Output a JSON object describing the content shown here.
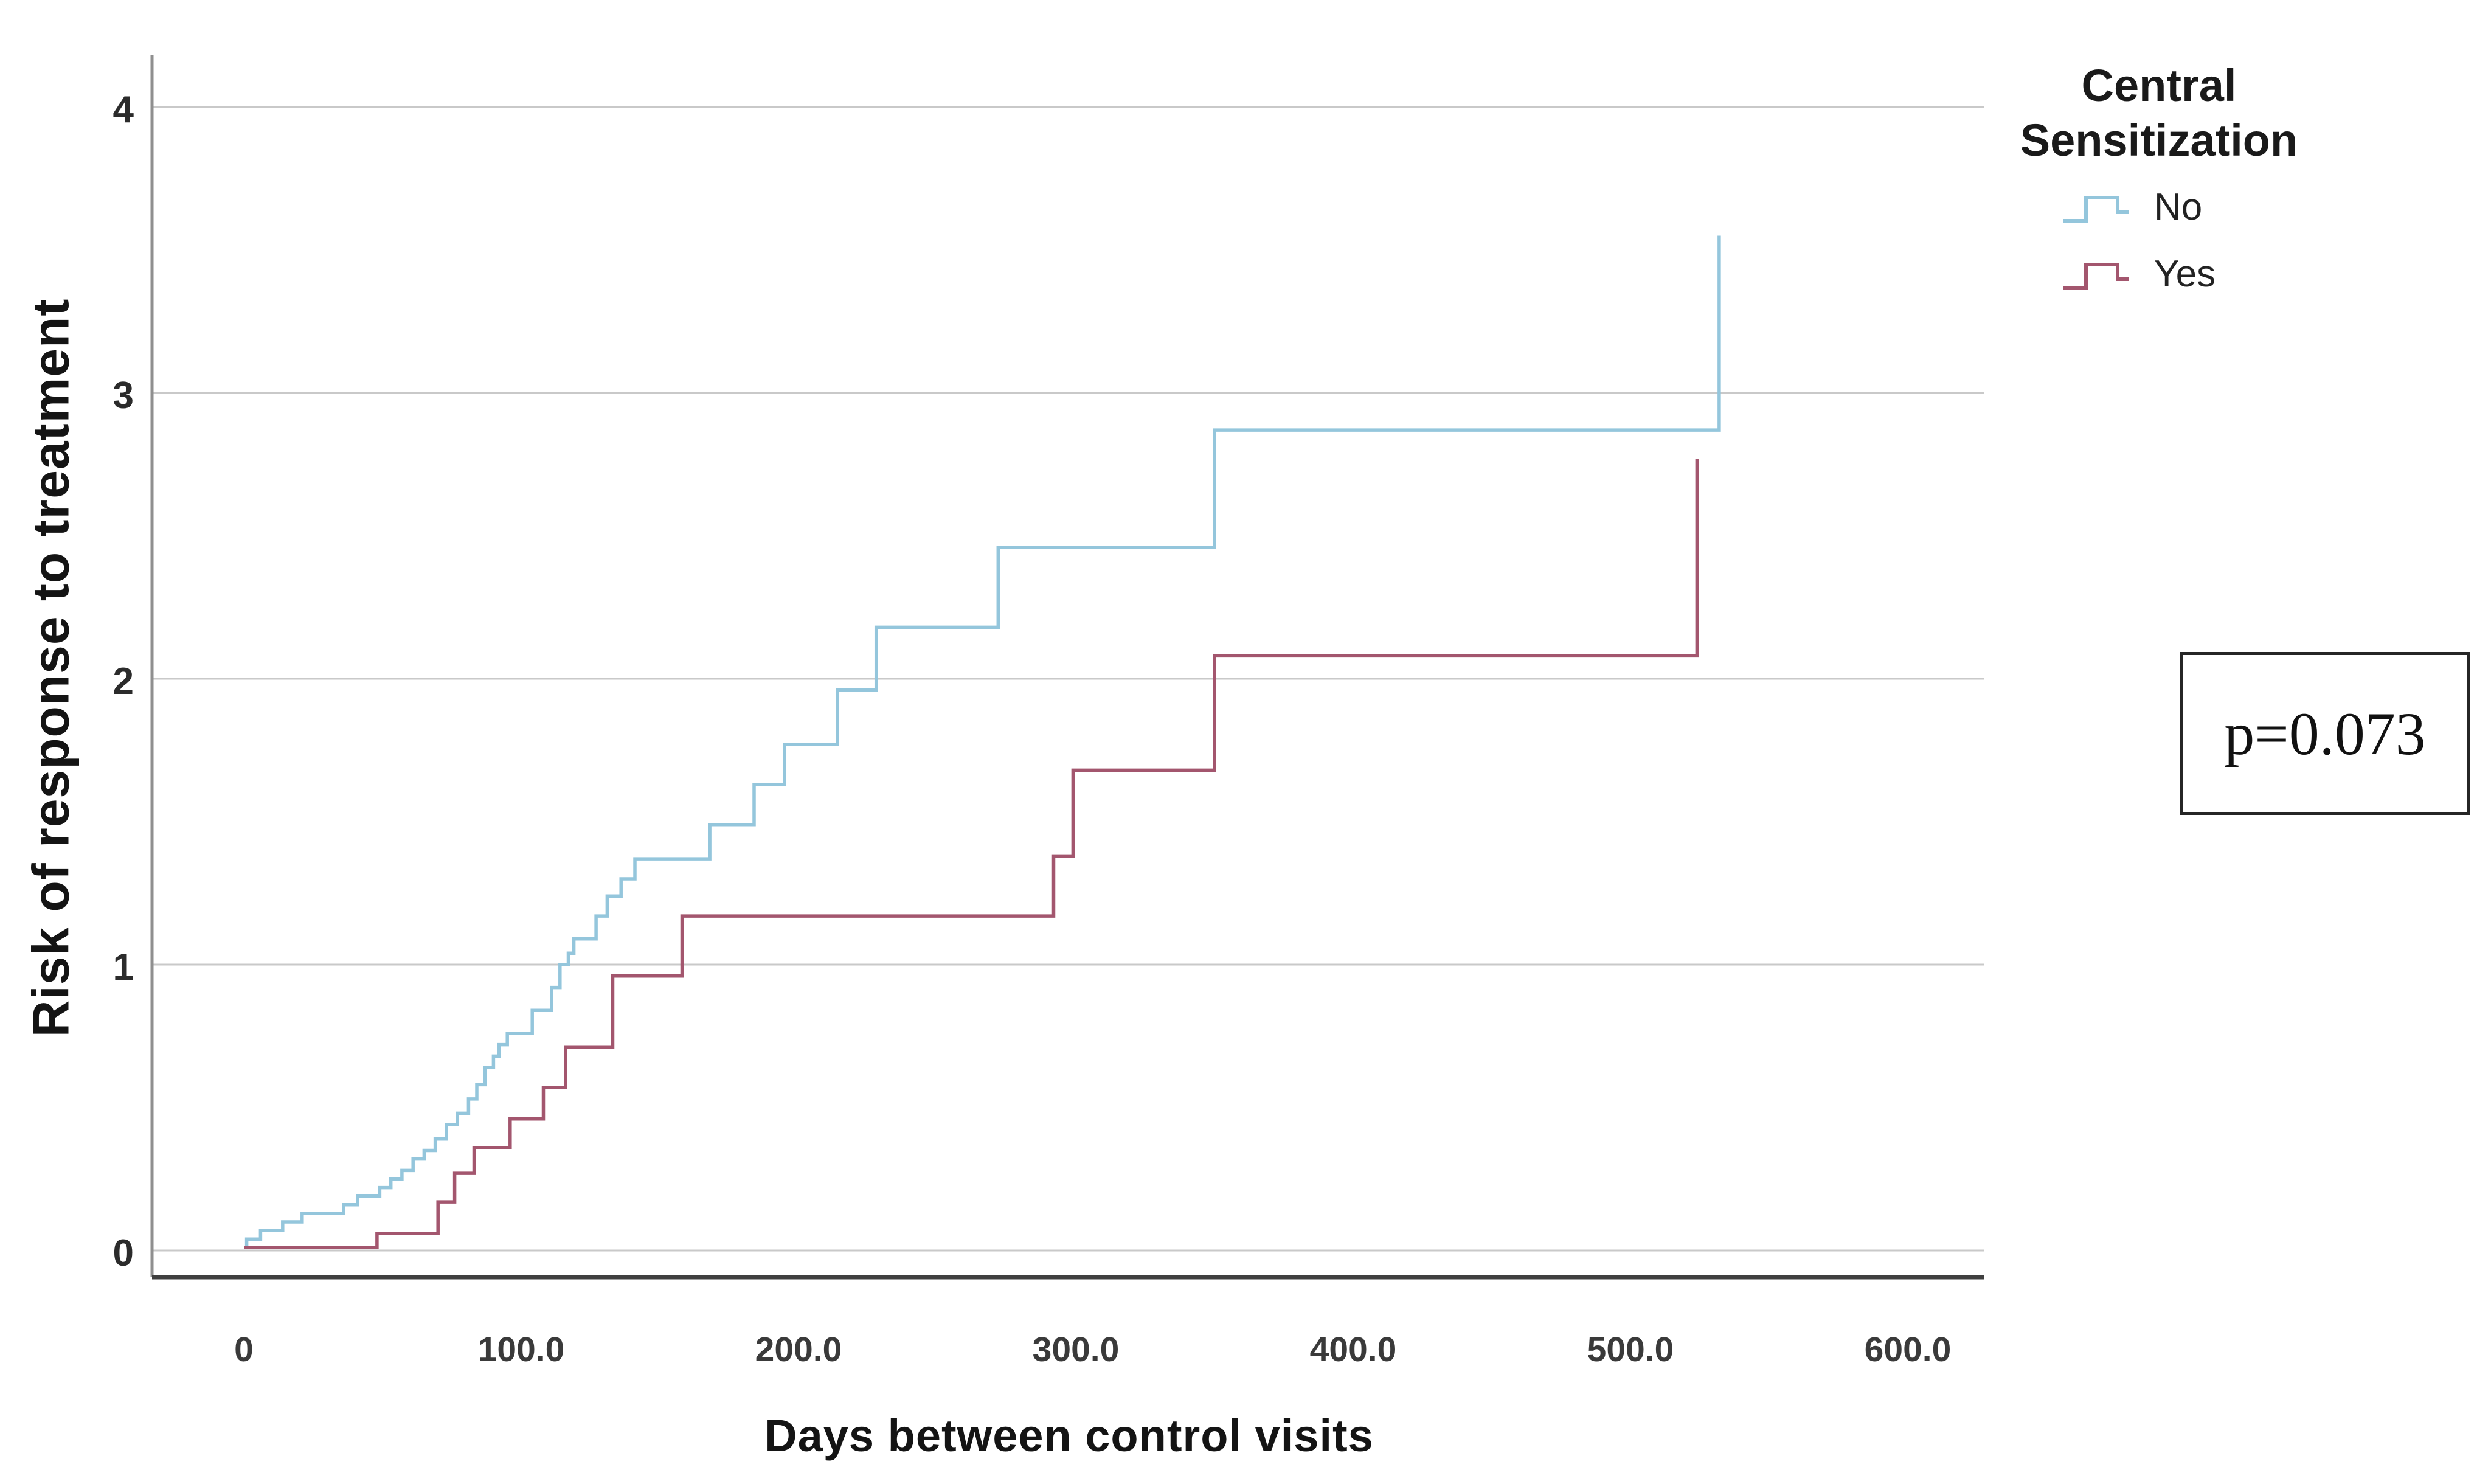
{
  "y_axis": {
    "title": "Risk of response to treatment",
    "ticks": [
      {
        "label": "4",
        "value": 4
      },
      {
        "label": "3",
        "value": 3
      },
      {
        "label": "2",
        "value": 2
      },
      {
        "label": "1",
        "value": 1
      },
      {
        "label": "0",
        "value": 0
      }
    ]
  },
  "x_axis": {
    "title": "Days between control visits",
    "ticks": [
      {
        "label": "0",
        "value": 0
      },
      {
        "label": "100.0",
        "value": 100
      },
      {
        "label": "200.0",
        "value": 200
      },
      {
        "label": "300.0",
        "value": 300
      },
      {
        "label": "400.0",
        "value": 400
      },
      {
        "label": "500.0",
        "value": 500
      },
      {
        "label": "600.0",
        "value": 600
      }
    ]
  },
  "legend": {
    "title_line1": "Central",
    "title_line2": "Sensitization",
    "items": [
      {
        "label": "No",
        "color": "#94c6dc"
      },
      {
        "label": "Yes",
        "color": "#a3566e"
      }
    ]
  },
  "annotation": {
    "p_label": "p=0.073"
  },
  "colors": {
    "gridline": "#c9c9c9",
    "y_axis_line": "#8f8f8f",
    "x_axis_line": "#3f3f3f",
    "series_no": "#94c6dc",
    "series_yes": "#a3566e"
  },
  "chart_data": {
    "type": "line",
    "subtype": "step-cumulative-hazard",
    "title": "",
    "xlabel": "Days between control visits",
    "ylabel": "Risk of response to treatment",
    "xlim": [
      -33,
      628
    ],
    "ylim": [
      -0.09,
      4.18
    ],
    "x_tick_values": [
      0,
      100,
      200,
      300,
      400,
      500,
      600
    ],
    "y_tick_values": [
      0,
      1,
      2,
      3,
      4
    ],
    "grid": "horizontal-only",
    "legend_position": "top-right-outside",
    "annotation_text": "p=0.073",
    "series": [
      {
        "name": "No",
        "color": "#94c6dc",
        "step_points": [
          [
            0.5,
            0.01
          ],
          [
            1,
            0.04
          ],
          [
            6,
            0.07
          ],
          [
            14,
            0.1
          ],
          [
            21,
            0.13
          ],
          [
            36,
            0.16
          ],
          [
            41,
            0.19
          ],
          [
            49,
            0.22
          ],
          [
            53,
            0.25
          ],
          [
            57,
            0.28
          ],
          [
            61,
            0.32
          ],
          [
            65,
            0.35
          ],
          [
            69,
            0.39
          ],
          [
            73,
            0.44
          ],
          [
            77,
            0.48
          ],
          [
            81,
            0.53
          ],
          [
            84,
            0.58
          ],
          [
            87,
            0.64
          ],
          [
            90,
            0.68
          ],
          [
            92,
            0.72
          ],
          [
            95,
            0.76
          ],
          [
            104,
            0.84
          ],
          [
            111,
            0.92
          ],
          [
            114,
            1.0
          ],
          [
            117,
            1.04
          ],
          [
            119,
            1.09
          ],
          [
            127,
            1.17
          ],
          [
            131,
            1.24
          ],
          [
            136,
            1.3
          ],
          [
            141,
            1.37
          ],
          [
            168,
            1.49
          ],
          [
            184,
            1.63
          ],
          [
            195,
            1.77
          ],
          [
            214,
            1.96
          ],
          [
            228,
            2.18
          ],
          [
            272,
            2.46
          ],
          [
            350,
            2.87
          ],
          [
            532,
            3.55
          ]
        ]
      },
      {
        "name": "Yes",
        "color": "#a3566e",
        "step_points": [
          [
            0,
            0.01
          ],
          [
            48,
            0.06
          ],
          [
            70,
            0.17
          ],
          [
            76,
            0.27
          ],
          [
            83,
            0.36
          ],
          [
            96,
            0.46
          ],
          [
            108,
            0.57
          ],
          [
            116,
            0.71
          ],
          [
            133,
            0.96
          ],
          [
            158,
            1.17
          ],
          [
            292,
            1.38
          ],
          [
            299,
            1.68
          ],
          [
            350,
            2.08
          ],
          [
            524,
            2.77
          ]
        ]
      }
    ]
  }
}
